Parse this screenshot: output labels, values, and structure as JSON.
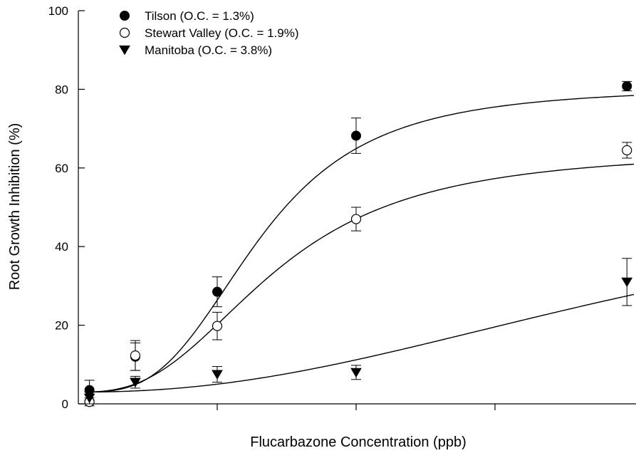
{
  "chart_data": {
    "type": "scatter",
    "title": "",
    "xlabel": "Flucarbazone Concentration (ppb)",
    "ylabel": "Root Growth Inhibition (%)",
    "xlim": [
      0,
      4
    ],
    "ylim": [
      0,
      100
    ],
    "y_ticks": [
      0,
      20,
      40,
      60,
      80,
      100
    ],
    "x_ticks": [
      1,
      2,
      3
    ],
    "x_tick_labels_shown": false,
    "legend_position": "top-left",
    "grid": false,
    "series": [
      {
        "name": "Tilson (O.C. = 1.3%)",
        "marker": "filled-circle",
        "points": [
          {
            "x": 0.08,
            "y": 3.5,
            "err": 2.5
          },
          {
            "x": 0.41,
            "y": 12.0,
            "err": 3.5
          },
          {
            "x": 1.0,
            "y": 28.5,
            "err": 3.8
          },
          {
            "x": 2.0,
            "y": 68.2,
            "err": 4.5
          },
          {
            "x": 3.95,
            "y": 80.8,
            "err": 1.2
          }
        ],
        "fit": {
          "bottom": 3,
          "top": 80.5,
          "x50": 1.3,
          "slope": 3.2
        }
      },
      {
        "name": "Stewart Valley (O.C. = 1.9%)",
        "marker": "open-circle",
        "points": [
          {
            "x": 0.08,
            "y": 0.5,
            "err": 1.0
          },
          {
            "x": 0.41,
            "y": 12.3,
            "err": 3.8
          },
          {
            "x": 1.0,
            "y": 19.8,
            "err": 3.5
          },
          {
            "x": 2.0,
            "y": 47.0,
            "err": 3.0
          },
          {
            "x": 3.95,
            "y": 64.5,
            "err": 2.0
          }
        ],
        "fit": {
          "bottom": 3,
          "top": 64.5,
          "x50": 1.42,
          "slope": 2.7
        }
      },
      {
        "name": "Manitoba (O.C. = 3.8%)",
        "marker": "filled-triangle-down",
        "points": [
          {
            "x": 0.08,
            "y": 1.5,
            "err": 1.5
          },
          {
            "x": 0.41,
            "y": 5.5,
            "err": 1.5
          },
          {
            "x": 1.0,
            "y": 7.5,
            "err": 2.0
          },
          {
            "x": 2.0,
            "y": 8.0,
            "err": 1.8
          },
          {
            "x": 3.95,
            "y": 31.0,
            "err": 6.0
          }
        ],
        "fit": {
          "bottom": 3,
          "top": 60,
          "x50": 4.5,
          "slope": 2.2
        }
      }
    ]
  }
}
